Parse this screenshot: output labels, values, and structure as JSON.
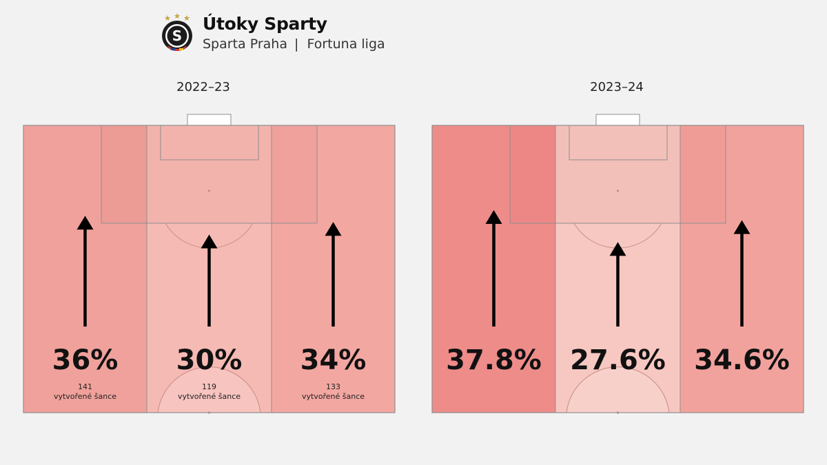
{
  "header": {
    "title": "Útoky Sparty",
    "team": "Sparta Praha",
    "separator": "|",
    "league": "Fortuna liga",
    "logo_letter": "S",
    "colors": {
      "logo_ring": "#1c1c1c",
      "logo_stars": "#c8a44a",
      "logo_red": "#d33b2c",
      "logo_blue": "#1b4aa0",
      "logo_yellow": "#f0c419"
    }
  },
  "chart_data": [
    {
      "type": "bar",
      "title": "2022–23",
      "categories": [
        "left",
        "center",
        "right"
      ],
      "values": [
        36,
        30,
        34
      ],
      "value_labels": [
        "36%",
        "30%",
        "34%"
      ],
      "counts": [
        141,
        119,
        133
      ],
      "count_label": "vytvořené šance",
      "colors": [
        "#f0a19b",
        "#f6bab4",
        "#f3a7a1"
      ],
      "arrow_direction": "up"
    },
    {
      "type": "bar",
      "title": "2023–24",
      "categories": [
        "left",
        "center",
        "right"
      ],
      "values": [
        37.8,
        27.6,
        34.6
      ],
      "value_labels": [
        "37.8%",
        "27.6%",
        "34.6%"
      ],
      "colors": [
        "#ee8c8a",
        "#f6c8c1",
        "#f2a29d"
      ],
      "arrow_direction": "up"
    }
  ]
}
